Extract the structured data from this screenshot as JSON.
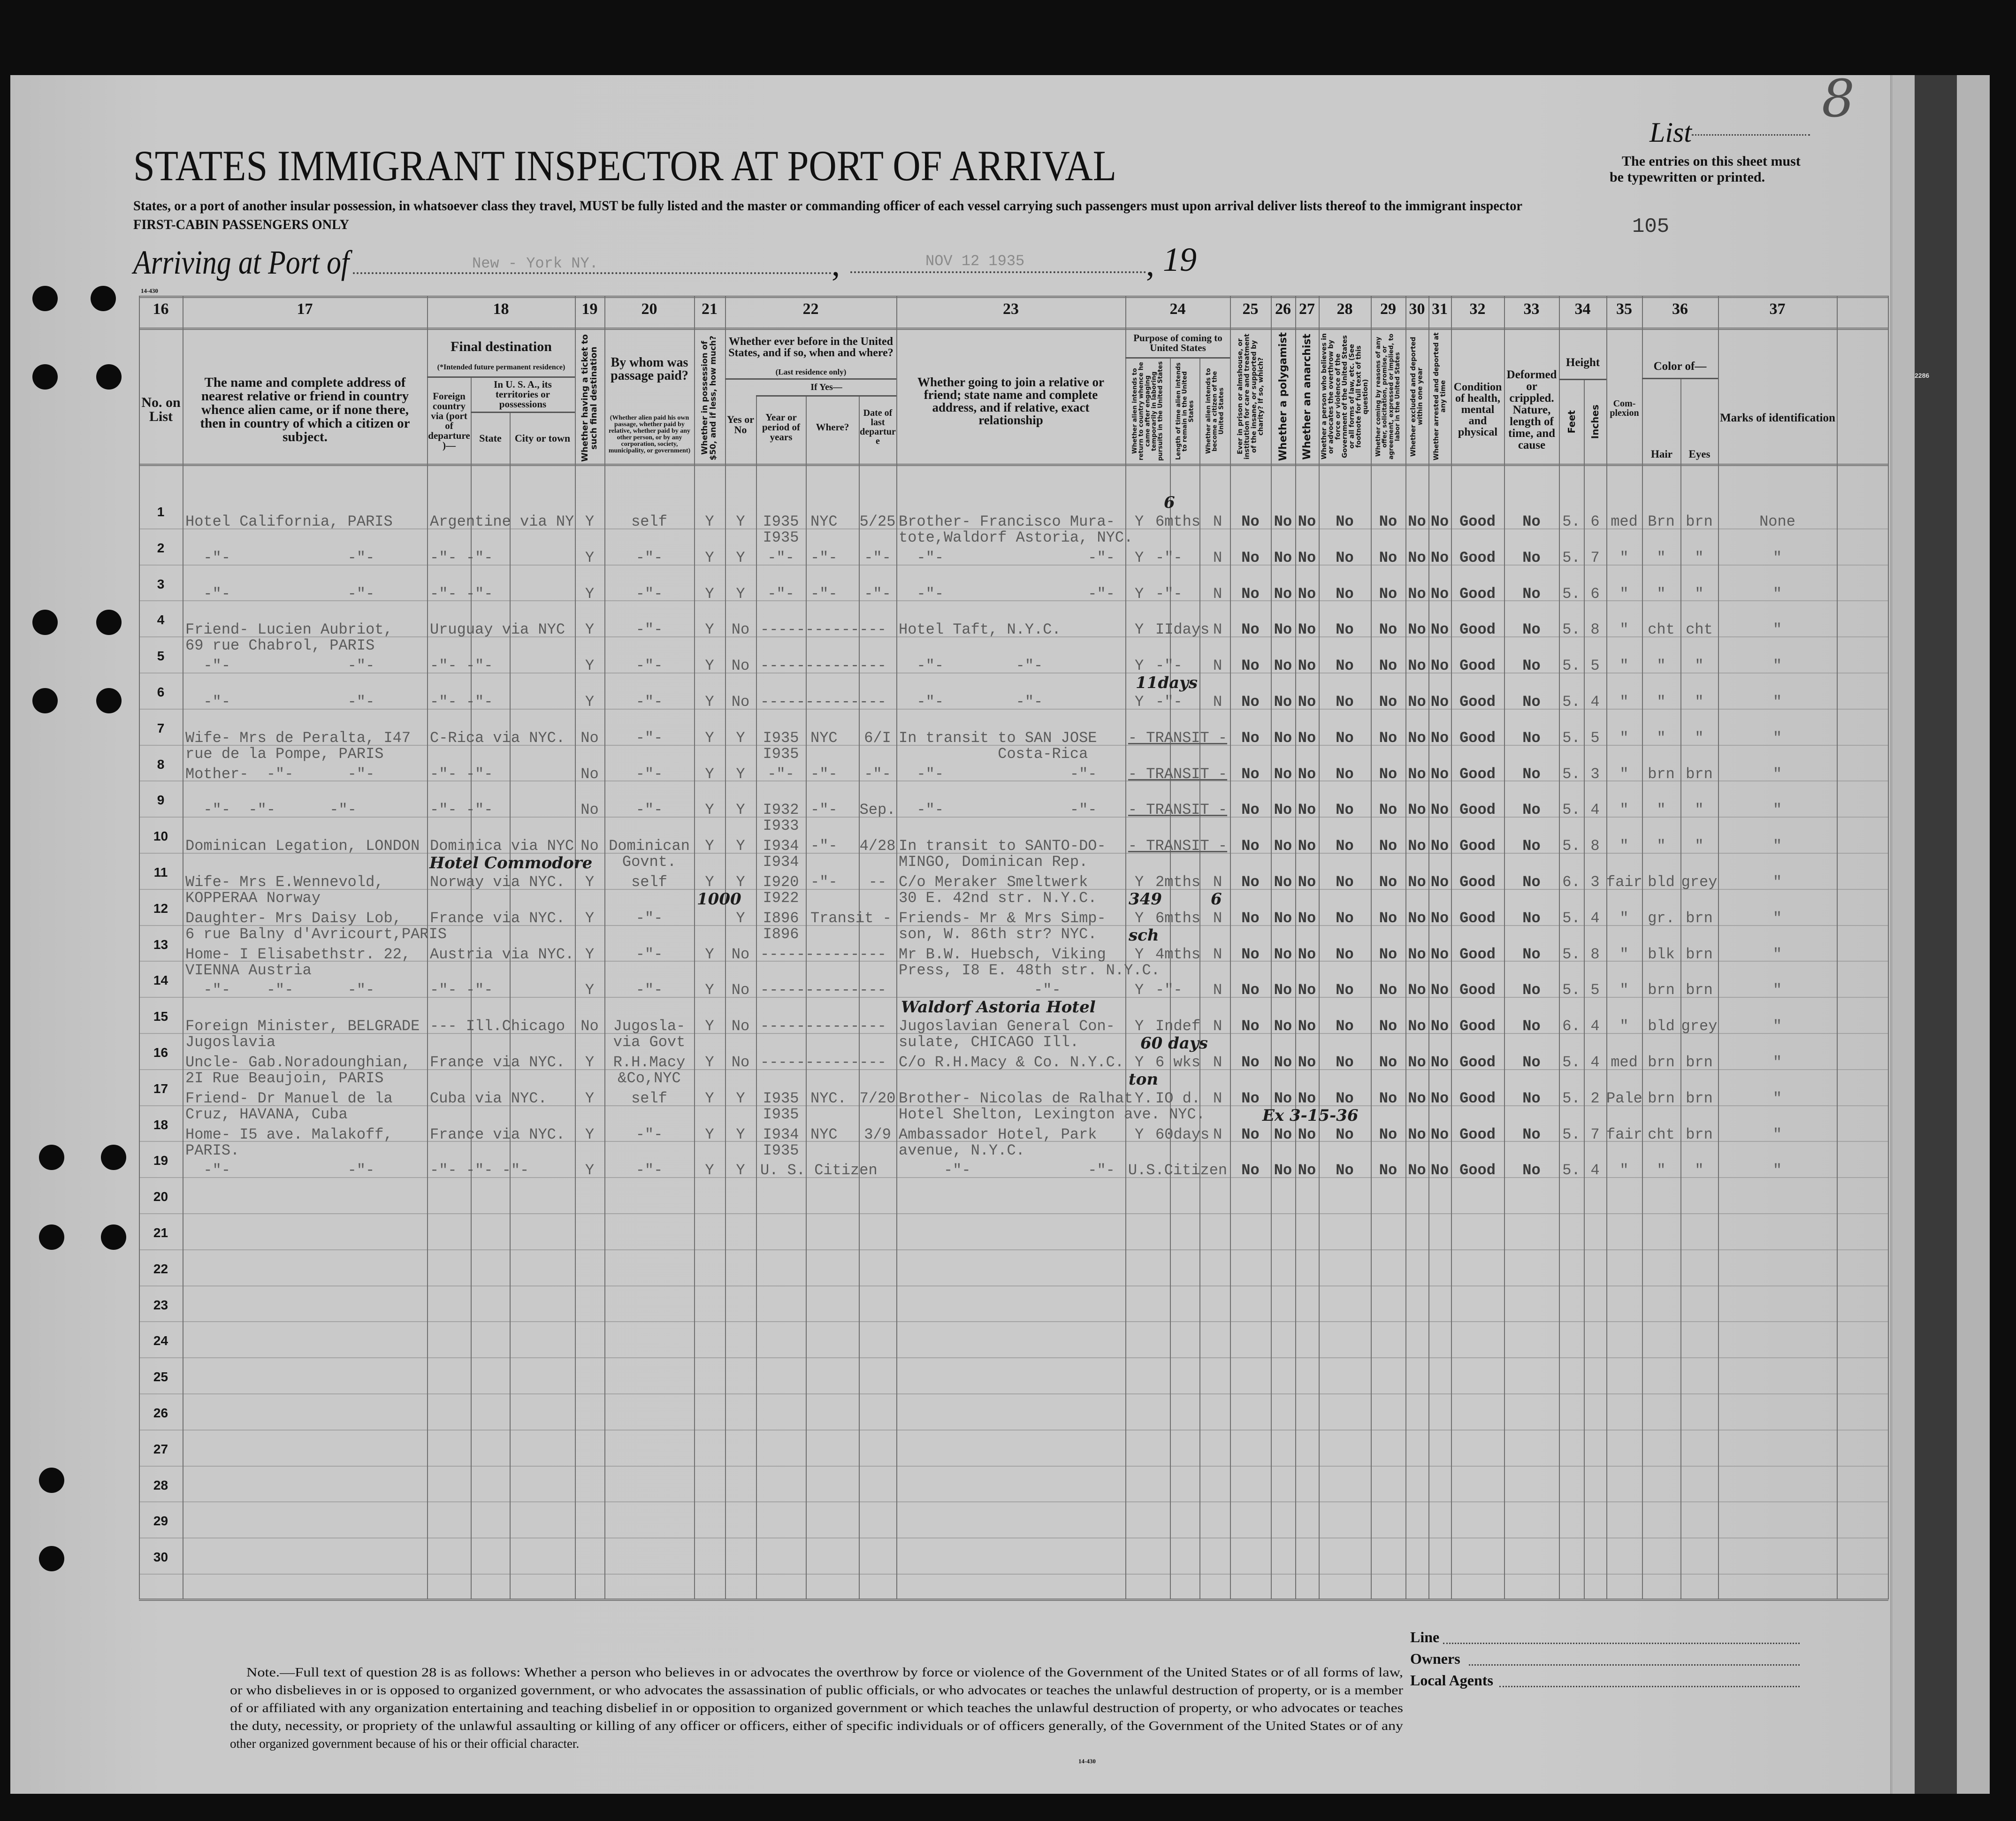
{
  "header": {
    "title": "STATES IMMIGRANT INSPECTOR AT PORT OF ARRIVAL",
    "subtitle": "States, or a port of another insular possession, in whatsoever class they travel, MUST be fully listed and the master or commanding officer of each vessel carrying such passengers must upon arrival deliver lists thereof to the immigrant inspector",
    "class_line": "FIRST-CABIN PASSENGERS ONLY",
    "arriving_label": "Arriving at Port of",
    "port_value": "New - York NY.",
    "date_value": "NOV 12 1935",
    "comma": ",",
    "year_prefix": "19",
    "list_label": "List",
    "list_number": "8",
    "instructions": [
      "The entries on this sheet must",
      "be typewritten or printed."
    ],
    "sheet_number": "105",
    "form_number": "14-430",
    "side_stamp": "2286"
  },
  "columns": {
    "numbers": [
      "16",
      "17",
      "18",
      "19",
      "20",
      "21",
      "22",
      "23",
      "24",
      "25",
      "26",
      "27",
      "28",
      "29",
      "30",
      "31",
      "32",
      "33",
      "34",
      "35",
      "36",
      "37"
    ],
    "h16": "No. on List",
    "h17": "The name and complete address of nearest relative or friend in country whence alien came, or if none there, then in country of which a citizen or subject.",
    "h18": "Final destination",
    "h18_note": "(*Intended future permanent residence)",
    "h18_foreign": "Foreign country via (port of departure)—",
    "h18_usa": "In U. S. A., its territories or possessions",
    "h18_state": "State",
    "h18_city": "City or town",
    "h19": "Whether having a ticket to such final destination",
    "h20": "By whom was passage paid?",
    "h20_note": "(Whether alien paid his own passage, whether paid by relative, whether paid by any other person, or by any corporation, society, municipality, or government)",
    "h21": "Whether in possession of $50, and if less, how much?",
    "h22": "Whether ever before in the United States, and if so, when and where?",
    "h22_note": "(Last residence only)",
    "h22_yesno": "Yes or No",
    "h22_ifyes": "If Yes—",
    "h22_year": "Year or period of years",
    "h22_where": "Where?",
    "h22_date": "Date of last departure",
    "h23": "Whether going to join a relative or friend; state name and complete address, and if relative, exact relationship",
    "h24": "Purpose of coming to United States",
    "h24_a": "Whether alien intends to return to country whence he came after engaging temporarily in laboring pursuits in the United States",
    "h24_b": "Length of time alien intends to remain in the United States",
    "h24_c": "Whether alien intends to become a citizen of the United States",
    "h25": "Ever in prison or almshouse, or institution for care and treatment of the insane, or supported by charity? If so, which?",
    "h26": "Whether a polygamist",
    "h27": "Whether an anarchist",
    "h28": "Whether a person who believes in or advocates the overthrow by force or violence of the Government of the United States or all forms of law, etc. (See footnote for full text of this question)",
    "h29": "Whether coming by reasons of any offer, solicitation, promise, or agreement, expressed or implied, to labor in the United States",
    "h30": "Whether excluded and deported within one year",
    "h31": "Whether arrested and deported at any time",
    "h32": "Condition of health, mental and physical",
    "h33": "Deformed or crippled. Nature, length of time, and cause",
    "h34": "Height",
    "h34_feet": "Feet",
    "h34_inches": "Inches",
    "h35": "Com- plexion",
    "h36": "Color of—",
    "h36_hair": "Hair",
    "h36_eyes": "Eyes",
    "h37": "Marks of identification"
  },
  "rows": [
    {
      "no": "1",
      "c17": [
        "Hotel California, PARIS"
      ],
      "c18": "Argentine via NY",
      "c19": "Y",
      "c20": [
        "self"
      ],
      "c21": "Y",
      "c22a": "Y",
      "year": [
        "I935",
        "I935"
      ],
      "where": "NYC",
      "date": "5/25",
      "c23": [
        "Brother- Francisco Mura-",
        "tote,Waldorf Astoria, NYC."
      ],
      "l24a": "Y",
      "l24b": "6mths",
      "l24c": "N",
      "q": [
        "No",
        "No",
        "No",
        "No",
        "No",
        "No",
        "No"
      ],
      "health": "Good",
      "deformed": "No",
      "feet": "5.",
      "inches": "6",
      "complexion": "med",
      "hair": "Brn",
      "eyes": "brn",
      "marks": "None"
    },
    {
      "no": "2",
      "c17": [
        "  -\"-             -\"-"
      ],
      "c18": "     -\"-      -\"-",
      "c19": "Y",
      "c20": [
        "-\"-"
      ],
      "c21": "Y",
      "c22a": "Y",
      "year": [
        "-\"-"
      ],
      "where": "-\"-",
      "date": "-\"-",
      "c23": [
        "  -\"-                -\"-"
      ],
      "l24a": "Y",
      "l24b": "-\"-",
      "l24c": "N",
      "q": [
        "No",
        "No",
        "No",
        "No",
        "No",
        "No",
        "No"
      ],
      "health": "Good",
      "deformed": "No",
      "feet": "5.",
      "inches": "7",
      "complexion": "\"",
      "hair": "\"",
      "eyes": "\"",
      "marks": "\""
    },
    {
      "no": "3",
      "c17": [
        "  -\"-             -\"-"
      ],
      "c18": "     -\"-      -\"-",
      "c19": "Y",
      "c20": [
        "-\"-"
      ],
      "c21": "Y",
      "c22a": "Y",
      "year": [
        "-\"-"
      ],
      "where": "-\"-",
      "date": "-\"-",
      "c23": [
        "  -\"-                -\"-"
      ],
      "l24a": "Y",
      "l24b": "-\"-",
      "l24c": "N",
      "q": [
        "No",
        "No",
        "No",
        "No",
        "No",
        "No",
        "No"
      ],
      "health": "Good",
      "deformed": "No",
      "feet": "5.",
      "inches": "6",
      "complexion": "\"",
      "hair": "\"",
      "eyes": "\"",
      "marks": "\""
    },
    {
      "no": "4",
      "c17": [
        "Friend- Lucien Aubriot,",
        "69 rue Chabrol, PARIS"
      ],
      "c18": "Uruguay via NYC",
      "c19": "Y",
      "c20": [
        "-\"-"
      ],
      "c21": "Y",
      "c22a": "No",
      "span22": "--------------",
      "c23": [
        "Hotel Taft, N.Y.C."
      ],
      "l24a": "Y",
      "l24b": "IIdays",
      "l24c": "N",
      "q": [
        "No",
        "No",
        "No",
        "No",
        "No",
        "No",
        "No"
      ],
      "health": "Good",
      "deformed": "No",
      "feet": "5.",
      "inches": "8",
      "complexion": "\"",
      "hair": "cht",
      "eyes": "cht",
      "marks": "\""
    },
    {
      "no": "5",
      "c17": [
        "  -\"-             -\"-"
      ],
      "c18": "     -\"-      -\"-",
      "c19": "Y",
      "c20": [
        "-\"-"
      ],
      "c21": "Y",
      "c22a": "No",
      "span22": "--------------",
      "c23": [
        "  -\"-        -\"-"
      ],
      "l24a": "Y",
      "l24b": "-\"-",
      "l24c": "N",
      "q": [
        "No",
        "No",
        "No",
        "No",
        "No",
        "No",
        "No"
      ],
      "health": "Good",
      "deformed": "No",
      "feet": "5.",
      "inches": "5",
      "complexion": "\"",
      "hair": "\"",
      "eyes": "\"",
      "marks": "\""
    },
    {
      "no": "6",
      "c17": [
        "  -\"-             -\"-"
      ],
      "c18": "     -\"-      -\"-",
      "c19": "Y",
      "c20": [
        "-\"-"
      ],
      "c21": "Y",
      "c22a": "No",
      "span22": "--------------",
      "c23": [
        "  -\"-        -\"-"
      ],
      "l24a": "Y",
      "l24b": "-\"-",
      "l24c": "N",
      "q": [
        "No",
        "No",
        "No",
        "No",
        "No",
        "No",
        "No"
      ],
      "health": "Good",
      "deformed": "No",
      "feet": "5.",
      "inches": "4",
      "complexion": "\"",
      "hair": "\"",
      "eyes": "\"",
      "marks": "\""
    },
    {
      "no": "7",
      "c17": [
        "Wife- Mrs de Peralta, I47",
        "rue de la Pompe, PARIS"
      ],
      "c18": "C-Rica via NYC.",
      "c19": "No",
      "c20": [
        "-\"-"
      ],
      "c21": "Y",
      "c22a": "Y",
      "year": [
        "I935",
        "I935"
      ],
      "where": "NYC",
      "date": "6/I",
      "c23": [
        "In transit to SAN JOSE",
        "           Costa-Rica"
      ],
      "span24": "- TRANSIT -",
      "q": [
        "No",
        "No",
        "No",
        "No",
        "No",
        "No",
        "No"
      ],
      "health": "Good",
      "deformed": "No",
      "feet": "5.",
      "inches": "5",
      "complexion": "\"",
      "hair": "\"",
      "eyes": "\"",
      "marks": "\""
    },
    {
      "no": "8",
      "c17": [
        "Mother-  -\"-      -\"-"
      ],
      "c18": "     -\"-     -\"-",
      "c19": "No",
      "c20": [
        "-\"-"
      ],
      "c21": "Y",
      "c22a": "Y",
      "year": [
        "-\"-"
      ],
      "where": "-\"-",
      "date": "-\"-",
      "c23": [
        "  -\"-              -\"-"
      ],
      "span24": "- TRANSIT -",
      "q": [
        "No",
        "No",
        "No",
        "No",
        "No",
        "No",
        "No"
      ],
      "health": "Good",
      "deformed": "No",
      "feet": "5.",
      "inches": "3",
      "complexion": "\"",
      "hair": "brn",
      "eyes": "brn",
      "marks": "\""
    },
    {
      "no": "9",
      "c17": [
        "  -\"-  -\"-      -\"-"
      ],
      "c18": "     -\"-     -\"-",
      "c19": "No",
      "c20": [
        "-\"-"
      ],
      "c21": "Y",
      "c22a": "Y",
      "year": [
        "I932",
        "I933"
      ],
      "where": "-\"-",
      "date": "Sep.",
      "c23": [
        "  -\"-              -\"-"
      ],
      "span24": "- TRANSIT -",
      "q": [
        "No",
        "No",
        "No",
        "No",
        "No",
        "No",
        "No"
      ],
      "health": "Good",
      "deformed": "No",
      "feet": "5.",
      "inches": "4",
      "complexion": "\"",
      "hair": "\"",
      "eyes": "\"",
      "marks": "\""
    },
    {
      "no": "10",
      "c17": [
        "Dominican Legation, LONDON"
      ],
      "c18": "Dominica via NYC",
      "c19": "No",
      "c20": [
        "Dominican",
        "Govnt."
      ],
      "c21": "Y",
      "c22a": "Y",
      "year": [
        "I934",
        "I934"
      ],
      "where": "-\"-",
      "date": "4/28",
      "c23": [
        "In transit to SANTO-DO-",
        "MINGO, Dominican Rep."
      ],
      "span24": "- TRANSIT -",
      "q": [
        "No",
        "No",
        "No",
        "No",
        "No",
        "No",
        "No"
      ],
      "health": "Good",
      "deformed": "No",
      "feet": "5.",
      "inches": "8",
      "complexion": "\"",
      "hair": "\"",
      "eyes": "\"",
      "marks": "\""
    },
    {
      "no": "11",
      "c17": [
        "Wife- Mrs E.Wennevold,",
        "KOPPERAA Norway"
      ],
      "c18": "Norway via NYC.",
      "c19": "Y",
      "c20": [
        "self"
      ],
      "c21": "Y",
      "c22a": "Y",
      "year": [
        "I920",
        "I922"
      ],
      "where": "-\"-",
      "date": "--",
      "c23": [
        "C/o Meraker Smeltwerk",
        "30 E. 42nd str. N.Y.C."
      ],
      "l24a": "Y",
      "l24b": "2mths",
      "l24c": "N",
      "q": [
        "No",
        "No",
        "No",
        "No",
        "No",
        "No",
        "No"
      ],
      "health": "Good",
      "deformed": "No",
      "feet": "6.",
      "inches": "3",
      "complexion": "fair",
      "hair": "bld",
      "eyes": "grey",
      "marks": "\""
    },
    {
      "no": "12",
      "c17": [
        "Daughter- Mrs Daisy Lob,",
        "6 rue Balny d'Avricourt,PARIS"
      ],
      "c18": "France via NYC.",
      "c19": "Y",
      "c20": [
        "-\"-"
      ],
      "c22a": "Y",
      "year": [
        "I896",
        "I896"
      ],
      "where": "Transit -",
      "c23": [
        "Friends- Mr & Mrs Simp-",
        "son, W. 86th str? NYC."
      ],
      "l24a": "Y",
      "l24b": "6mths",
      "l24c": "N",
      "q": [
        "No",
        "No",
        "No",
        "No",
        "No",
        "No",
        "No"
      ],
      "health": "Good",
      "deformed": "No",
      "feet": "5.",
      "inches": "4",
      "complexion": "\"",
      "hair": "gr.",
      "eyes": "brn",
      "marks": "\""
    },
    {
      "no": "13",
      "c17": [
        "Home- I Elisabethstr. 22,",
        "VIENNA Austria"
      ],
      "c18": "Austria via NYC.",
      "c19": "Y",
      "c20": [
        "-\"-"
      ],
      "c21": "Y",
      "c22a": "No",
      "span22": "--------------",
      "c23": [
        "Mr B.W. Huebsch, Viking",
        "Press, I8 E. 48th str. N.Y.C."
      ],
      "l24a": "Y",
      "l24b": "4mths",
      "l24c": "N",
      "q": [
        "No",
        "No",
        "No",
        "No",
        "No",
        "No",
        "No"
      ],
      "health": "Good",
      "deformed": "No",
      "feet": "5.",
      "inches": "8",
      "complexion": "\"",
      "hair": "blk",
      "eyes": "brn",
      "marks": "\""
    },
    {
      "no": "14",
      "c17": [
        "  -\"-    -\"-      -\"-"
      ],
      "c18": "  -\"-       -\"-",
      "c19": "Y",
      "c20": [
        "-\"-"
      ],
      "c21": "Y",
      "c22a": "No",
      "span22": "--------------",
      "c23": [
        "               -\"-"
      ],
      "l24a": "Y",
      "l24b": "-\"-",
      "l24c": "N",
      "q": [
        "No",
        "No",
        "No",
        "No",
        "No",
        "No",
        "No"
      ],
      "health": "Good",
      "deformed": "No",
      "feet": "5.",
      "inches": "5",
      "complexion": "\"",
      "hair": "brn",
      "eyes": "brn",
      "marks": "\""
    },
    {
      "no": "15",
      "c17": [
        "Foreign Minister, BELGRADE",
        "Jugoslavia"
      ],
      "c18": "---   Ill.Chicago",
      "c19": "No",
      "c20": [
        "Jugosla-",
        "via Govt"
      ],
      "c21": "Y",
      "c22a": "No",
      "span22": "--------------",
      "c23": [
        "Jugoslavian General Con-",
        "sulate, CHICAGO Ill."
      ],
      "l24a": "Y",
      "l24b": "Indef",
      "l24c": "N",
      "q": [
        "No",
        "No",
        "No",
        "No",
        "No",
        "No",
        "No"
      ],
      "health": "Good",
      "deformed": "No",
      "feet": "6.",
      "inches": "4",
      "complexion": "\"",
      "hair": "bld",
      "eyes": "grey",
      "marks": "\""
    },
    {
      "no": "16",
      "c17": [
        "Uncle- Gab.Noradounghian,",
        "2I Rue Beaujoin, PARIS"
      ],
      "c18": "France via NYC.",
      "c19": "Y",
      "c20": [
        "R.H.Macy",
        "&Co,NYC"
      ],
      "c21": "Y",
      "c22a": "No",
      "span22": "--------------",
      "c23": [
        "C/o R.H.Macy & Co. N.Y.C."
      ],
      "l24a": "Y",
      "l24b": "6 wks",
      "l24c": "N",
      "q": [
        "No",
        "No",
        "No",
        "No",
        "No",
        "No",
        "No"
      ],
      "health": "Good",
      "deformed": "No",
      "feet": "5.",
      "inches": "4",
      "complexion": "med",
      "hair": "brn",
      "eyes": "brn",
      "marks": "\""
    },
    {
      "no": "17",
      "c17": [
        "Friend- Dr Manuel de la",
        "Cruz, HAVANA, Cuba"
      ],
      "c18": "Cuba via NYC.",
      "c19": "Y",
      "c20": [
        "self"
      ],
      "c21": "Y",
      "c22a": "Y",
      "year": [
        "I935",
        "I935"
      ],
      "where": "NYC.",
      "date": "7/20",
      "c23": [
        "Brother- Nicolas de Ralhat",
        "Hotel Shelton, Lexington ave. NYC."
      ],
      "l24a": "Y.",
      "l24b": "IO d.",
      "l24c": "N",
      "q": [
        "No",
        "No",
        "No",
        "No",
        "No",
        "No",
        "No"
      ],
      "health": "Good",
      "deformed": "No",
      "feet": "5.",
      "inches": "2",
      "complexion": "Pale",
      "hair": "brn",
      "eyes": "brn",
      "marks": "\""
    },
    {
      "no": "18",
      "c17": [
        "Home- I5 ave. Malakoff,",
        "PARIS."
      ],
      "c18": "France via NYC.",
      "c19": "Y",
      "c20": [
        "-\"-"
      ],
      "c21": "Y",
      "c22a": "Y",
      "year": [
        "I934",
        "I935"
      ],
      "where": "NYC",
      "date": "3/9",
      "c23": [
        "Ambassador Hotel, Park",
        "avenue, N.Y.C."
      ],
      "l24a": "Y",
      "l24b": "60days",
      "l24c": "N",
      "q": [
        "No",
        "No",
        "No",
        "No",
        "No",
        "No",
        "No"
      ],
      "health": "Good",
      "deformed": "No",
      "feet": "5.",
      "inches": "7",
      "complexion": "fair",
      "hair": "cht",
      "eyes": "brn",
      "marks": "\""
    },
    {
      "no": "19",
      "c17": [
        "  -\"-             -\"-"
      ],
      "c18": "    -\"-   -\"- -\"-",
      "c19": "Y",
      "c20": [
        "-\"-"
      ],
      "c21": "Y",
      "c22a": "Y",
      "span22": "U. S. Citizen",
      "c23": [
        "     -\"-             -\"-"
      ],
      "span24": "U.S.Citizen",
      "q": [
        "No",
        "No",
        "No",
        "No",
        "No",
        "No",
        "No"
      ],
      "health": "Good",
      "deformed": "No",
      "feet": "5.",
      "inches": "4",
      "complexion": "\"",
      "hair": "\"",
      "eyes": "\"",
      "marks": "\""
    },
    {
      "no": "20"
    },
    {
      "no": "21"
    },
    {
      "no": "22"
    },
    {
      "no": "23"
    },
    {
      "no": "24"
    },
    {
      "no": "25"
    },
    {
      "no": "26"
    },
    {
      "no": "27"
    },
    {
      "no": "28"
    },
    {
      "no": "29"
    },
    {
      "no": "30"
    }
  ],
  "handwritten": {
    "row1_length": "6",
    "row6_length": "11days",
    "row11_address": "Hotel Commodore",
    "row12_money": "1000",
    "row12_house": "349",
    "row12_length": "6",
    "row13_name": "sch",
    "row14_address": "Waldorf Astoria Hotel",
    "row16_length": "60 days",
    "row17_hotel": "ton",
    "row18_exit": "Ex 3-15-36"
  },
  "footnote": [
    "Note.—Full text of question 28 is as follows: Whether a person who believes in or advocates the overthrow by force or violence of the Government of the United States or of all forms of law,",
    "or who disbelieves in or is opposed to organized government, or who advocates the assassination of public officials, or who advocates or teaches the unlawful destruction of property, or is a member",
    "of or affiliated with any organization entertaining and teaching disbelief in or opposition to organized government or which teaches the unlawful destruction of property, or who advocates or teaches",
    "the duty, necessity, or propriety of the unlawful assaulting or killing of any officer or officers, either of specific individuals or of officers generally, of the Government of the United States or of any",
    "other organized government because of his or their official character."
  ],
  "signature_block": {
    "line": "Line",
    "owners": "Owners",
    "local_agents": "Local Agents"
  },
  "colors": {
    "paper": "#c6c6c6",
    "typed_ink": "#5b5b5b",
    "print_ink": "#151515",
    "background": "#0d0d0d"
  }
}
